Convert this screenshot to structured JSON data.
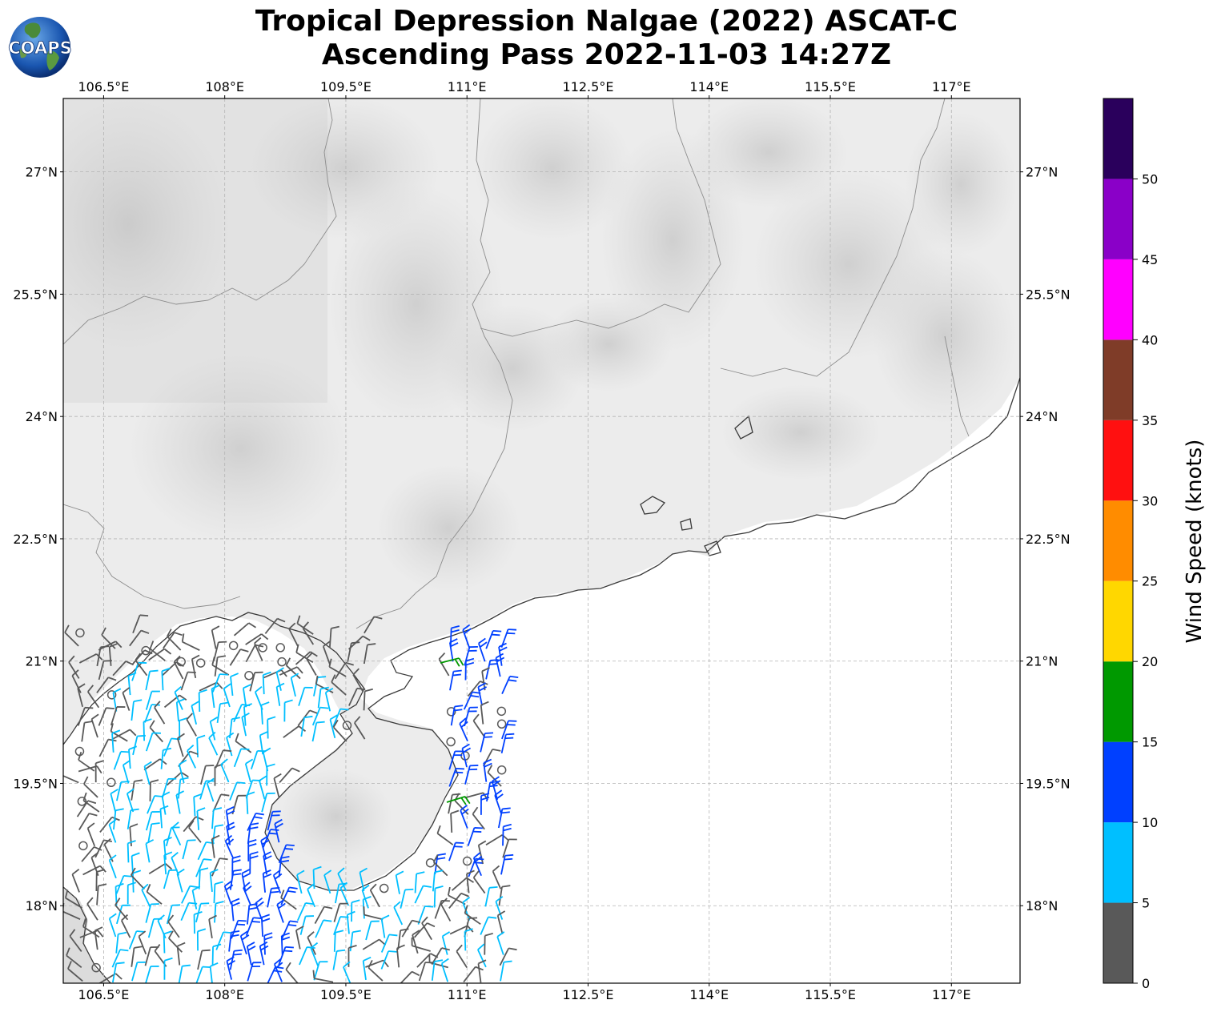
{
  "header": {
    "title_line1": "Tropical Depression Nalgae (2022) ASCAT-C",
    "title_line2": "Ascending Pass 2022-11-03 14:27Z",
    "logo_text": "COAPS"
  },
  "map": {
    "lon_ticks": [
      "106.5°E",
      "108°E",
      "109.5°E",
      "111°E",
      "112.5°E",
      "114°E",
      "115.5°E",
      "117°E"
    ],
    "lat_ticks": [
      "27°N",
      "25.5°N",
      "24°N",
      "22.5°N",
      "21°N",
      "19.5°N",
      "18°N"
    ],
    "lon_values": [
      106.5,
      108,
      109.5,
      111,
      112.5,
      114,
      115.5,
      117
    ],
    "lat_values": [
      27,
      25.5,
      24,
      22.5,
      21,
      19.5,
      18
    ],
    "extent": {
      "lon_min": 106.0,
      "lon_max": 117.85,
      "lat_min": 17.05,
      "lat_max": 27.9
    }
  },
  "colorbar": {
    "label": "Wind Speed (knots)",
    "tick_labels": [
      "0",
      "5",
      "10",
      "15",
      "20",
      "25",
      "30",
      "35",
      "40",
      "45",
      "50"
    ],
    "levels": [
      0,
      5,
      10,
      15,
      20,
      25,
      30,
      35,
      40,
      45,
      50,
      55
    ],
    "colors": [
      "#595959",
      "#00bfff",
      "#0040ff",
      "#009900",
      "#ffd700",
      "#ff8c00",
      "#ff1010",
      "#7f3c28",
      "#ff00ff",
      "#8a00c8",
      "#2a005c"
    ]
  }
}
